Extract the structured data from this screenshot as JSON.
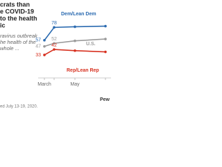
{
  "chart_data": {
    "type": "line",
    "title_lines": [
      "crats than",
      "e COVID-19",
      "to the health",
      "ic"
    ],
    "subtitle_lines": [
      "ravirus outbreak",
      "he health of the",
      "whole ..."
    ],
    "categories": [
      "March",
      null,
      "May",
      null
    ],
    "series": [
      {
        "name": "Dem/Lean Dem",
        "color": "#2a6ab0",
        "values": [
          57,
          78,
          79,
          80
        ]
      },
      {
        "name": "U.S.",
        "color": "#9a9a9a",
        "values": [
          47,
          52,
          56,
          59
        ]
      },
      {
        "name": "Rep/Lean Rep",
        "color": "#d7301f",
        "values": [
          33,
          42,
          40,
          38
        ]
      }
    ],
    "footer": "ed July 13-19, 2020.",
    "source": "Pew"
  }
}
